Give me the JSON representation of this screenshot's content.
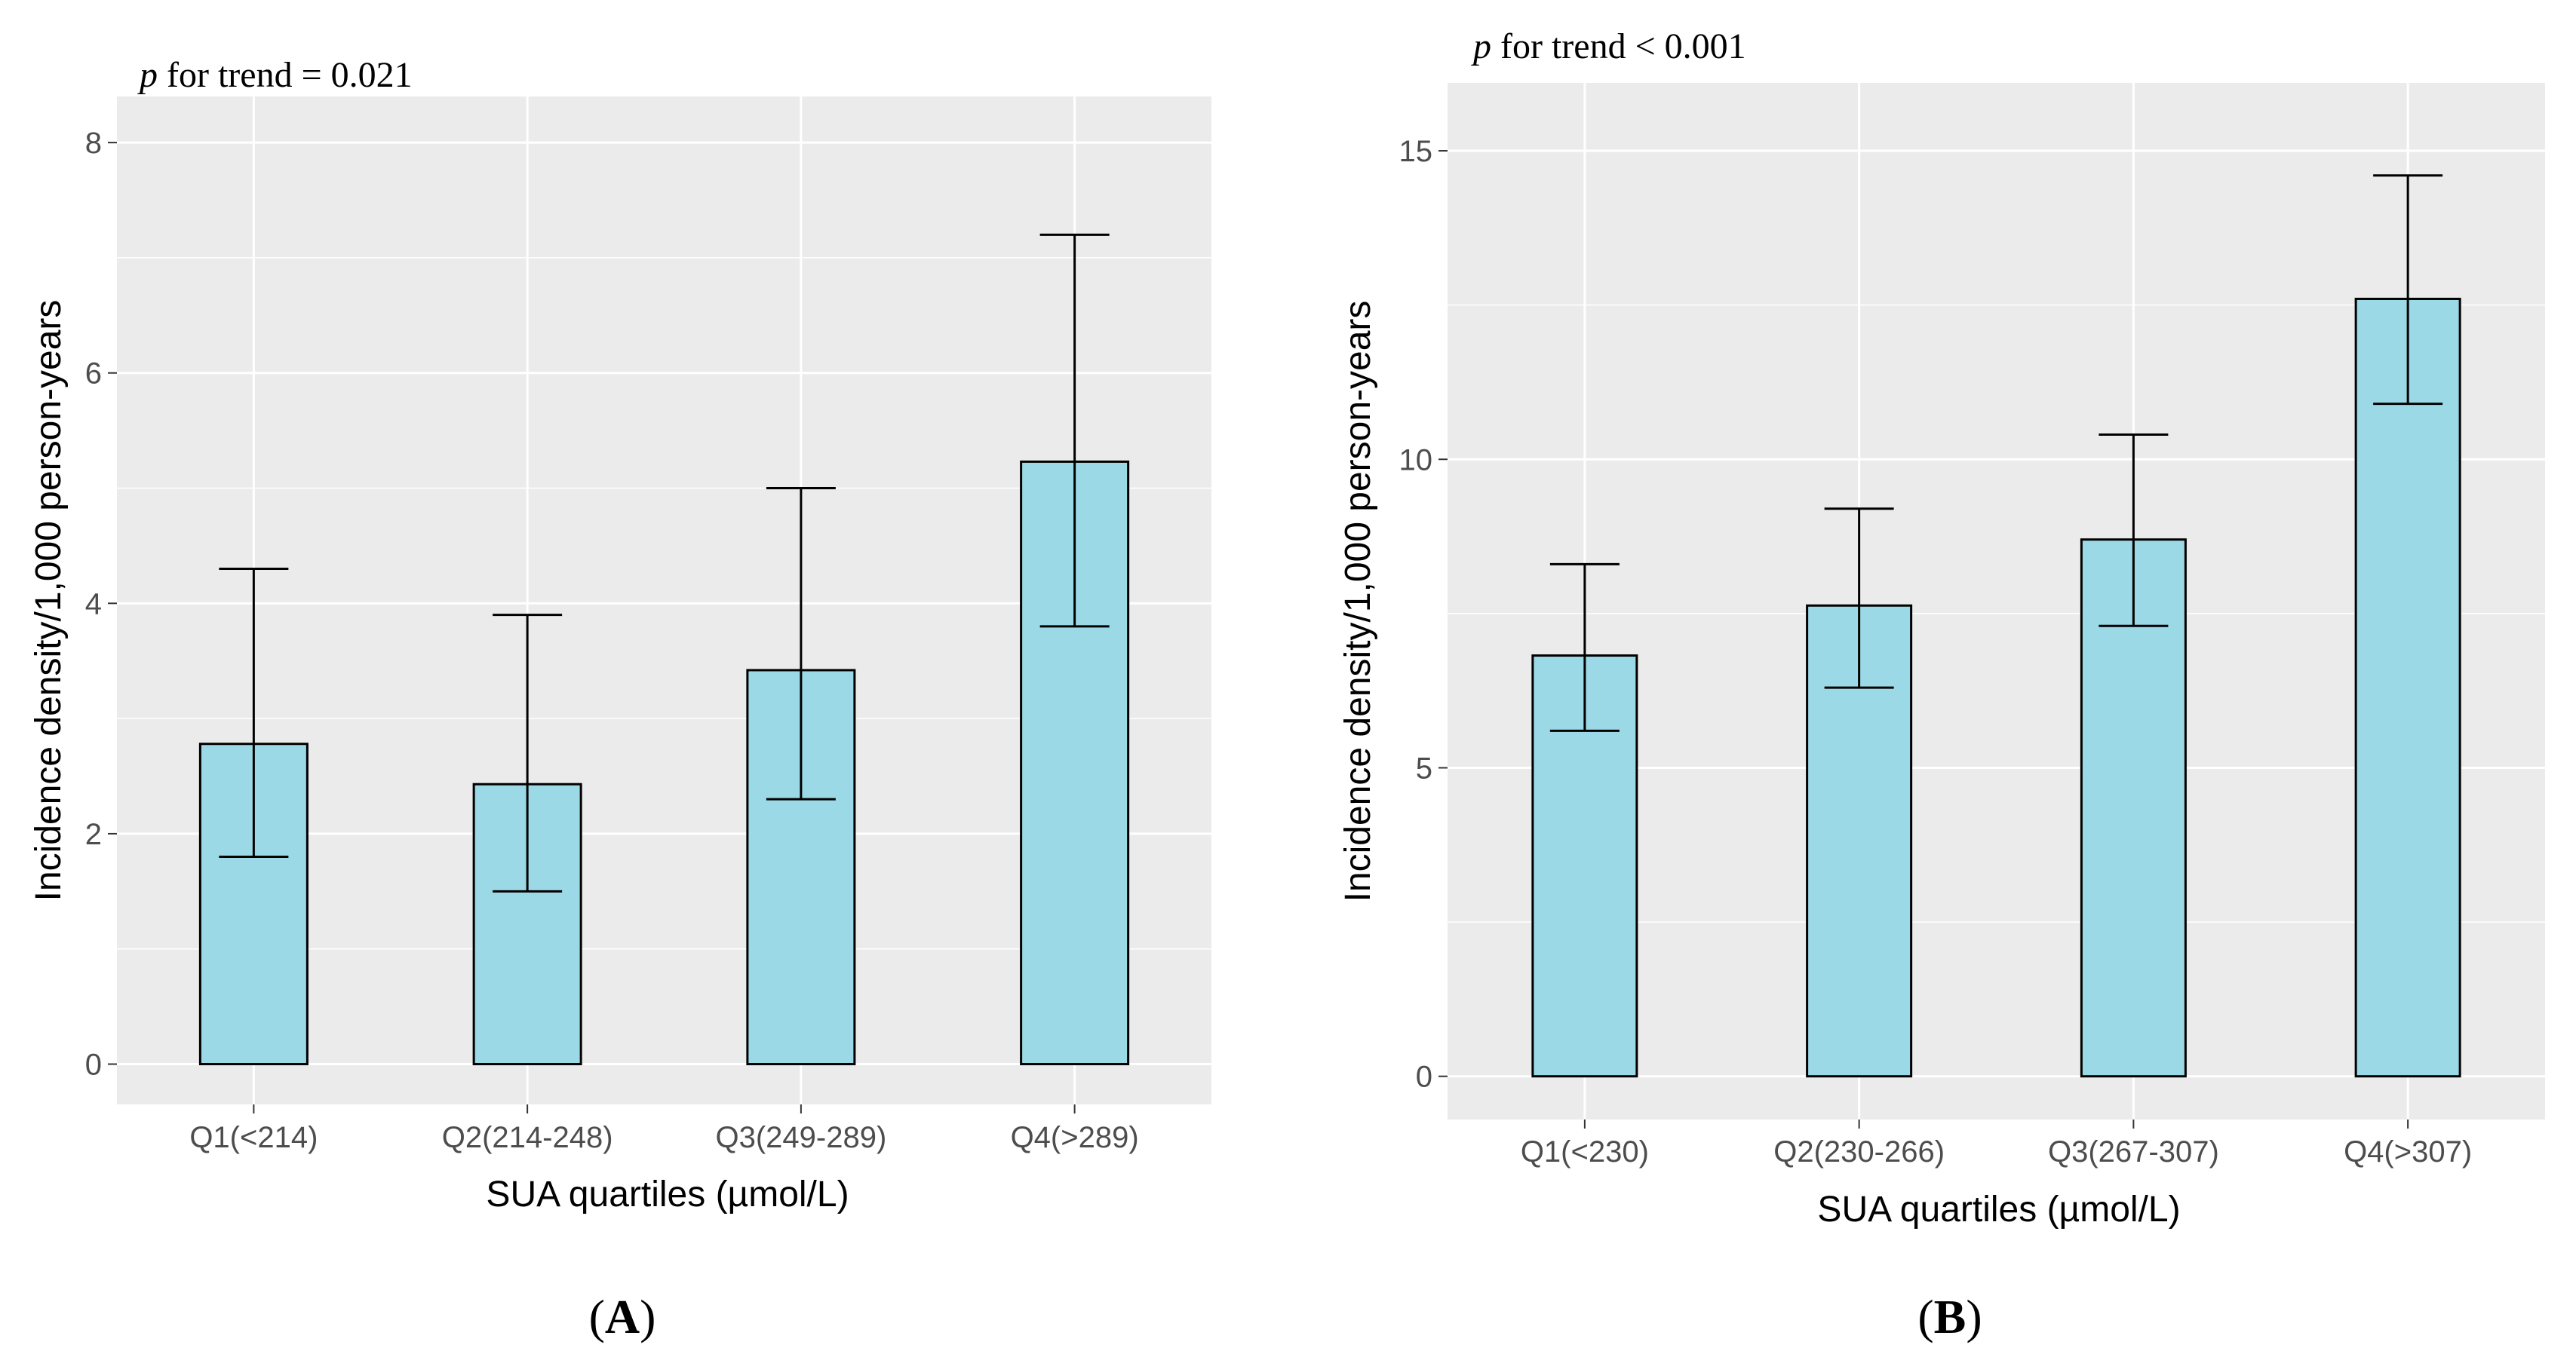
{
  "colors": {
    "panel_background": "#ebebeb",
    "gridline": "#ffffff",
    "bar_fill": "#9bd9e7",
    "bar_stroke": "#000000",
    "errorbar": "#000000",
    "tick_text": "#4d4d4d",
    "axis_title_text": "#000000"
  },
  "chart_data": [
    {
      "type": "bar",
      "panel_label": "A",
      "annotation": {
        "italic": "p",
        "rest": " for trend = 0.021"
      },
      "categories": [
        "Q1(<214)",
        "Q2(214-248)",
        "Q3(249-289)",
        "Q4(>289)"
      ],
      "values": [
        2.78,
        2.43,
        3.42,
        5.23
      ],
      "error_lower": [
        1.8,
        1.5,
        2.3,
        3.8
      ],
      "error_upper": [
        4.3,
        3.9,
        5.0,
        7.2
      ],
      "xlabel": "SUA quartiles (µmol/L)",
      "ylabel": "Incidence density/1,000 person-years",
      "ylim": [
        -0.35,
        8.4
      ],
      "yticks": [
        0,
        2,
        4,
        6,
        8
      ],
      "grid": true
    },
    {
      "type": "bar",
      "panel_label": "B",
      "annotation": {
        "italic": "p",
        "rest": " for trend < 0.001"
      },
      "categories": [
        "Q1(<230)",
        "Q2(230-266)",
        "Q3(267-307)",
        "Q4(>307)"
      ],
      "values": [
        6.82,
        7.63,
        8.7,
        12.6
      ],
      "error_lower": [
        5.6,
        6.3,
        7.3,
        10.9
      ],
      "error_upper": [
        8.3,
        9.2,
        10.4,
        14.6
      ],
      "xlabel": "SUA quartiles (µmol/L)",
      "ylabel": "Incidence density/1,000 person-years",
      "ylim": [
        -0.7,
        16.1
      ],
      "yticks": [
        0,
        5,
        10,
        15
      ],
      "grid": true
    }
  ]
}
